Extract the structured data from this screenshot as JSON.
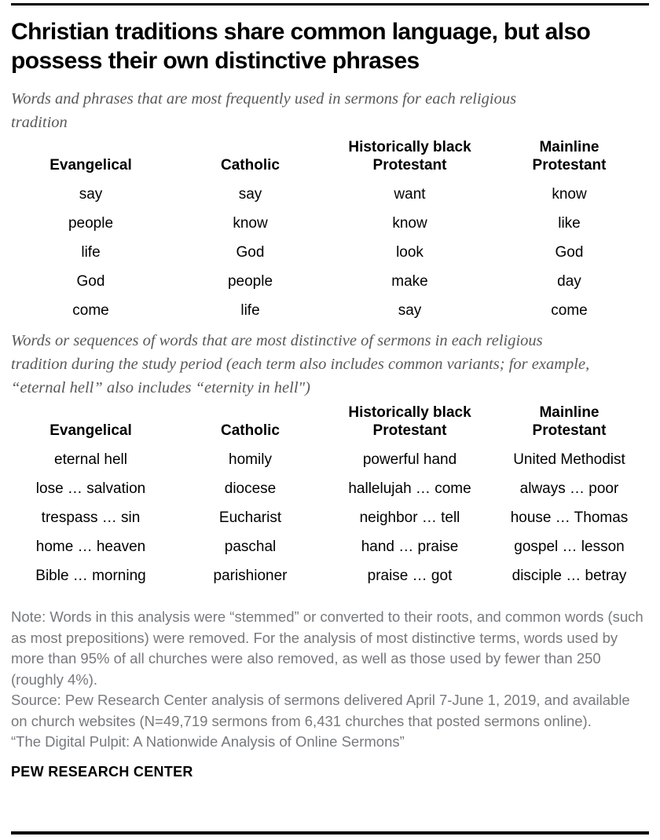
{
  "header": {
    "title": "Christian traditions share common language, but also possess their own distinctive phrases"
  },
  "chart_data": [
    {
      "type": "table",
      "title": "Words and phrases that are most frequently used in sermons for each religious tradition",
      "columns": [
        "Evangelical",
        "Catholic",
        "Historically black Protestant",
        "Mainline Protestant"
      ],
      "rows": [
        [
          "say",
          "say",
          "want",
          "know"
        ],
        [
          "people",
          "know",
          "know",
          "like"
        ],
        [
          "life",
          "God",
          "look",
          "God"
        ],
        [
          "God",
          "people",
          "make",
          "day"
        ],
        [
          "come",
          "life",
          "say",
          "come"
        ]
      ],
      "layout": "4 equal centered columns, header bottom-aligned, no gridlines"
    },
    {
      "type": "table",
      "title": "Words or sequences of words that are most distinctive of sermons in each religious tradition during the study period (each term also includes common variants; for example, “eternal hell” also includes “eternity in hell\")",
      "columns": [
        "Evangelical",
        "Catholic",
        "Historically black Protestant",
        "Mainline Protestant"
      ],
      "rows": [
        [
          "eternal hell",
          "homily",
          "powerful hand",
          "United Methodist"
        ],
        [
          "lose … salvation",
          "diocese",
          "hallelujah … come",
          "always … poor"
        ],
        [
          "trespass … sin",
          "Eucharist",
          "neighbor … tell",
          "house … Thomas"
        ],
        [
          "home … heaven",
          "paschal",
          "hand … praise",
          "gospel … lesson"
        ],
        [
          "Bible … morning",
          "parishioner",
          "praise … got",
          "disciple … betray"
        ]
      ],
      "layout": "4 equal centered columns, header bottom-aligned, no gridlines"
    }
  ],
  "notes": {
    "note": "Note: Words in this analysis were “stemmed” or converted to their roots, and common words (such as most prepositions) were removed. For the analysis of most distinctive terms, words used by more than 95% of all churches were also removed, as well as those used by fewer than 250 (roughly 4%).",
    "source": "Source: Pew Research Center analysis of sermons delivered April 7-June 1, 2019, and available on church websites (N=49,719 sermons from 6,431 churches that posted sermons online).",
    "report_title": "“The Digital Pulpit: A Nationwide Analysis of Online Sermons”"
  },
  "footer": {
    "brand": "PEW RESEARCH CENTER"
  },
  "colors": {
    "text": "#000000",
    "muted_subtitle": "#58595b",
    "muted_notes": "#77797d",
    "rule": "#000000"
  }
}
